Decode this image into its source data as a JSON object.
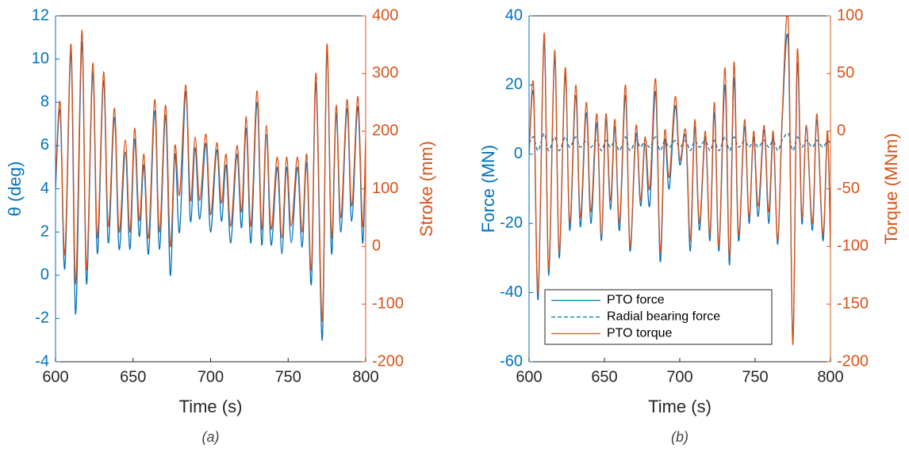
{
  "chart_data": [
    {
      "type": "line",
      "caption": "(a)",
      "xlabel": "Time (s)",
      "ylabel": "θ (deg)",
      "y2label": "Stroke (mm)",
      "xlim": [
        600,
        800
      ],
      "xticks": [
        600,
        650,
        700,
        750,
        800
      ],
      "ylim": [
        -4,
        12
      ],
      "yticks": [
        -4,
        -2,
        0,
        2,
        4,
        6,
        8,
        10,
        12
      ],
      "y2lim": [
        -200,
        400
      ],
      "y2ticks": [
        -200,
        -100,
        0,
        100,
        200,
        300,
        400
      ],
      "x": [
        600,
        603,
        606,
        610,
        613,
        617,
        620,
        624,
        627,
        631,
        634,
        638,
        641,
        645,
        648,
        651,
        654,
        657,
        660,
        664,
        667,
        671,
        674,
        677,
        680,
        684,
        687,
        690,
        693,
        697,
        700,
        704,
        707,
        710,
        713,
        717,
        720,
        723,
        726,
        730,
        733,
        736,
        739,
        743,
        746,
        749,
        752,
        756,
        759,
        762,
        765,
        768,
        772,
        775,
        778,
        781,
        784,
        788,
        791,
        795,
        798,
        800
      ],
      "series": [
        {
          "name": "θ",
          "color": "#0072BD",
          "axis": "y",
          "values": [
            4.0,
            7.6,
            0.3,
            10.3,
            -1.8,
            10.8,
            -0.4,
            9.4,
            1.0,
            9.0,
            1.5,
            7.3,
            1.2,
            5.7,
            1.2,
            6.3,
            1.8,
            5.1,
            1.0,
            7.6,
            1.2,
            7.4,
            0.0,
            5.6,
            2.0,
            8.5,
            2.5,
            5.9,
            2.6,
            6.1,
            2.0,
            5.8,
            2.5,
            5.1,
            1.5,
            5.6,
            2.2,
            6.8,
            1.5,
            8.0,
            1.4,
            6.5,
            1.4,
            5.0,
            1.0,
            5.0,
            1.5,
            5.0,
            1.3,
            5.2,
            -0.4,
            8.9,
            -3.0,
            10.4,
            1.0,
            7.5,
            2.0,
            7.7,
            2.5,
            7.8,
            1.5,
            6.0
          ]
        },
        {
          "name": "Stroke",
          "color": "#D95319",
          "axis": "y2",
          "values": [
            110,
            250,
            -14,
            351,
            -65,
            375,
            -40,
            318,
            15,
            303,
            35,
            240,
            25,
            185,
            25,
            205,
            45,
            160,
            15,
            255,
            25,
            245,
            0,
            175,
            90,
            280,
            80,
            190,
            80,
            195,
            55,
            180,
            75,
            160,
            35,
            175,
            60,
            225,
            35,
            270,
            30,
            210,
            30,
            155,
            15,
            155,
            35,
            155,
            25,
            160,
            -40,
            300,
            -130,
            350,
            15,
            245,
            50,
            255,
            70,
            260,
            35,
            190
          ]
        }
      ]
    },
    {
      "type": "line",
      "caption": "(b)",
      "xlabel": "Time (s)",
      "ylabel": "Force (MN)",
      "y2label": "Torque (MNm)",
      "legend": "lower left",
      "xlim": [
        600,
        800
      ],
      "xticks": [
        600,
        650,
        700,
        750,
        800
      ],
      "ylim": [
        -60,
        40
      ],
      "yticks": [
        -60,
        -40,
        -20,
        0,
        20,
        40
      ],
      "y2lim": [
        -200,
        100
      ],
      "y2ticks": [
        -200,
        -150,
        -100,
        -50,
        0,
        50,
        100
      ],
      "x": [
        600,
        603,
        606,
        610,
        613,
        617,
        620,
        624,
        627,
        631,
        634,
        638,
        641,
        645,
        648,
        651,
        654,
        657,
        660,
        664,
        667,
        671,
        674,
        677,
        680,
        684,
        687,
        690,
        693,
        697,
        700,
        704,
        707,
        710,
        713,
        717,
        720,
        723,
        726,
        730,
        733,
        736,
        739,
        743,
        746,
        749,
        752,
        756,
        759,
        762,
        765,
        768,
        772,
        775,
        778,
        781,
        784,
        788,
        791,
        795,
        798,
        800
      ],
      "series": [
        {
          "name": "PTO force",
          "color": "#0072BD",
          "axis": "y",
          "style": "solid",
          "values": [
            0,
            17,
            -42,
            33,
            -35,
            28,
            -30,
            23,
            -22,
            17,
            -21,
            12,
            -20,
            9,
            -25,
            10,
            -16,
            8,
            -22,
            17,
            -28,
            6,
            -15,
            3,
            -15,
            18,
            -31,
            4,
            -10,
            14,
            -3,
            5,
            -28,
            8,
            -22,
            5,
            -25,
            12,
            -28,
            20,
            -32,
            22,
            -25,
            8,
            -20,
            5,
            -18,
            7,
            -20,
            5,
            -26,
            10,
            32,
            -54,
            26,
            -20,
            8,
            -22,
            10,
            -25,
            5,
            -27
          ]
        },
        {
          "name": "Radial bearing force",
          "color": "#0072BD",
          "axis": "y",
          "style": "dashed",
          "values": [
            3,
            5,
            1,
            6,
            1,
            5,
            1,
            5,
            2,
            5,
            2,
            4,
            2,
            4,
            1,
            4,
            2,
            4,
            1,
            5,
            1,
            4,
            2,
            4,
            2,
            5,
            1,
            4,
            2,
            4,
            2,
            4,
            1,
            4,
            2,
            4,
            1,
            4,
            1,
            5,
            1,
            5,
            2,
            4,
            2,
            4,
            2,
            4,
            2,
            4,
            1,
            4,
            6,
            1,
            5,
            2,
            4,
            2,
            4,
            2,
            4,
            3
          ]
        },
        {
          "name": "PTO torque",
          "color": "#D95319",
          "axis": "y2",
          "style": "solid",
          "values": [
            -20,
            40,
            -140,
            85,
            -120,
            70,
            -105,
            55,
            -80,
            40,
            -75,
            25,
            -70,
            15,
            -90,
            15,
            -60,
            10,
            -80,
            40,
            -100,
            5,
            -60,
            -5,
            -50,
            45,
            -105,
            0,
            -40,
            30,
            -25,
            0,
            -95,
            10,
            -80,
            0,
            -90,
            25,
            -100,
            55,
            -110,
            60,
            -90,
            10,
            -75,
            0,
            -65,
            5,
            -70,
            0,
            -95,
            15,
            95,
            -185,
            70,
            -75,
            5,
            -80,
            15,
            -90,
            0,
            -100
          ]
        }
      ]
    }
  ]
}
